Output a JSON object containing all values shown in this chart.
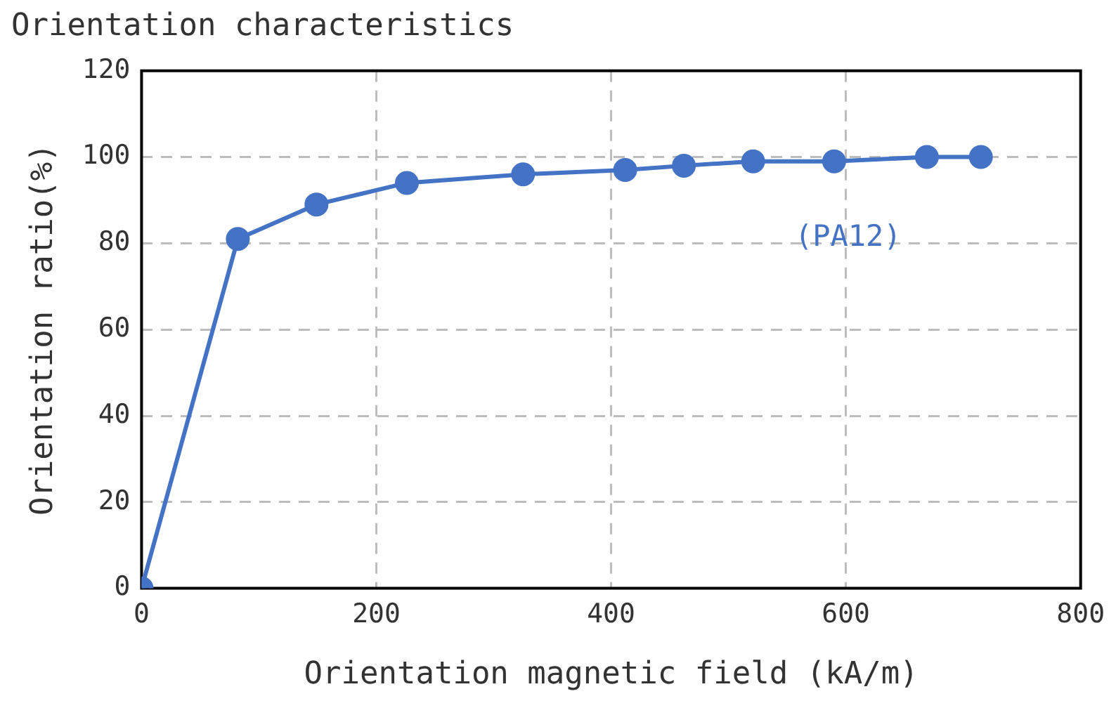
{
  "chart_data": {
    "type": "line",
    "title": "Orientation characteristics",
    "xlabel": "Orientation magnetic field (kA/m)",
    "ylabel": "Orientation ratio(%)",
    "x": [
      0,
      82,
      149,
      226,
      325,
      412,
      462,
      521,
      590,
      669,
      715
    ],
    "series": [
      {
        "name": "(PA12)",
        "color": "#4472c4",
        "values": [
          0,
          81,
          89,
          94,
          96,
          97,
          98,
          99,
          99,
          100,
          100
        ]
      }
    ],
    "xlim": [
      0,
      800
    ],
    "xticks": [
      0,
      200,
      400,
      600,
      800
    ],
    "ylim": [
      0,
      120
    ],
    "yticks": [
      0,
      20,
      40,
      60,
      80,
      100,
      120
    ],
    "grid": true,
    "legend": false,
    "marker": "circle",
    "line_style": "solid"
  }
}
